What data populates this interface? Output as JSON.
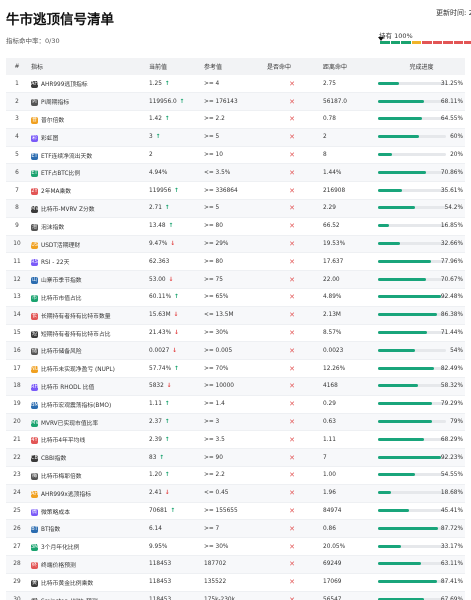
{
  "header": {
    "title": "牛市逃顶信号清单",
    "update_label": "更新时间: 2023",
    "hits_label": "指标命中率：0/30",
    "hold_label": "持有 100%",
    "segments": [
      "#1aa36f",
      "#1aa36f",
      "#1aa36f",
      "#f0b429",
      "#e25555",
      "#e25555",
      "#e25555",
      "#e25555",
      "#e25555",
      "#e25555"
    ]
  },
  "columns": [
    "#",
    "指标",
    "当前值",
    "参考值",
    "是否命中",
    "距离命中",
    "完成进度"
  ],
  "rows": [
    {
      "idx": "1",
      "icon": "AH",
      "name": "AHR999逃顶指标",
      "current": "1.25",
      "trend": "up",
      "ref": ">= 4",
      "hit": "✕",
      "distance": "2.75",
      "progress": 31.25,
      "pct": "31.25%"
    },
    {
      "idx": "2",
      "icon": "PI",
      "name": "Pi周期指标",
      "current": "119956.0",
      "trend": "up",
      "ref": ">= 176143",
      "hit": "✕",
      "distance": "56187.0",
      "progress": 68.11,
      "pct": "68.11%"
    },
    {
      "idx": "3",
      "icon": "普",
      "name": "普尔倍数",
      "current": "1.42",
      "trend": "up",
      "ref": ">= 2.2",
      "hit": "✕",
      "distance": "0.78",
      "progress": 64.55,
      "pct": "64.55%"
    },
    {
      "idx": "4",
      "icon": "彩",
      "name": "彩虹图",
      "current": "3",
      "trend": "up",
      "ref": ">= 5",
      "hit": "✕",
      "distance": "2",
      "progress": 60,
      "pct": "60%"
    },
    {
      "idx": "5",
      "icon": "ET",
      "name": "ETF连续净流出天数",
      "current": "2",
      "trend": "",
      "ref": ">= 10",
      "hit": "✕",
      "distance": "8",
      "progress": 20,
      "pct": "20%"
    },
    {
      "idx": "6",
      "icon": "ET",
      "name": "ETF占BTC比例",
      "current": "4.94%",
      "trend": "",
      "ref": "<= 3.5%",
      "hit": "✕",
      "distance": "1.44%",
      "progress": 70.86,
      "pct": "70.86%"
    },
    {
      "idx": "7",
      "icon": "2Y",
      "name": "2年MA乘数",
      "current": "119956",
      "trend": "up",
      "ref": ">= 336864",
      "hit": "✕",
      "distance": "216908",
      "progress": 35.61,
      "pct": "35.61%"
    },
    {
      "idx": "8",
      "icon": "MV",
      "name": "比特币-MVRV Z分数",
      "current": "2.71",
      "trend": "up",
      "ref": ">= 5",
      "hit": "✕",
      "distance": "2.29",
      "progress": 54.2,
      "pct": "54.2%"
    },
    {
      "idx": "9",
      "icon": "泡",
      "name": "泡沫指数",
      "current": "13.48",
      "trend": "up",
      "ref": ">= 80",
      "hit": "✕",
      "distance": "66.52",
      "progress": 16.85,
      "pct": "16.85%"
    },
    {
      "idx": "10",
      "icon": "US",
      "name": "USDT活期理财",
      "current": "9.47%",
      "trend": "down",
      "ref": ">= 29%",
      "hit": "✕",
      "distance": "19.53%",
      "progress": 32.66,
      "pct": "32.66%"
    },
    {
      "idx": "11",
      "icon": "RS",
      "name": "RSI - 22天",
      "current": "62.363",
      "trend": "",
      "ref": ">= 80",
      "hit": "✕",
      "distance": "17.637",
      "progress": 77.96,
      "pct": "77.96%"
    },
    {
      "idx": "12",
      "icon": "山",
      "name": "山寨币季节指数",
      "current": "53.00",
      "trend": "down",
      "ref": ">= 75",
      "hit": "✕",
      "distance": "22.00",
      "progress": 70.67,
      "pct": "70.67%"
    },
    {
      "idx": "13",
      "icon": "市",
      "name": "比特币市值占比",
      "current": "60.11%",
      "trend": "up",
      "ref": ">= 65%",
      "hit": "✕",
      "distance": "4.89%",
      "progress": 92.48,
      "pct": "92.48%"
    },
    {
      "idx": "14",
      "icon": "长",
      "name": "长期持有者持有比特币数量",
      "current": "15.63M",
      "trend": "down",
      "ref": "<= 13.5M",
      "hit": "✕",
      "distance": "2.13M",
      "progress": 86.38,
      "pct": "86.38%"
    },
    {
      "idx": "15",
      "icon": "短",
      "name": "短期持有者持有比特币占比",
      "current": "21.43%",
      "trend": "down",
      "ref": ">= 30%",
      "hit": "✕",
      "distance": "8.57%",
      "progress": 71.44,
      "pct": "71.44%"
    },
    {
      "idx": "16",
      "icon": "储",
      "name": "比特币储备风险",
      "current": "0.0027",
      "trend": "down",
      "ref": ">= 0.005",
      "hit": "✕",
      "distance": "0.0023",
      "progress": 54,
      "pct": "54%"
    },
    {
      "idx": "17",
      "icon": "NU",
      "name": "比特币未实现净盈亏 (NUPL)",
      "current": "57.74%",
      "trend": "up",
      "ref": ">= 70%",
      "hit": "✕",
      "distance": "12.26%",
      "progress": 82.49,
      "pct": "82.49%"
    },
    {
      "idx": "18",
      "icon": "RH",
      "name": "比特币 RHODL 比值",
      "current": "5832",
      "trend": "down",
      "ref": ">= 10000",
      "hit": "✕",
      "distance": "4168",
      "progress": 58.32,
      "pct": "58.32%"
    },
    {
      "idx": "19",
      "icon": "BM",
      "name": "比特币宏观震荡指标(BMO)",
      "current": "1.11",
      "trend": "up",
      "ref": ">= 1.4",
      "hit": "✕",
      "distance": "0.29",
      "progress": 79.29,
      "pct": "79.29%"
    },
    {
      "idx": "20",
      "icon": "MV",
      "name": "MVRV已实现市值比率",
      "current": "2.37",
      "trend": "up",
      "ref": ">= 3",
      "hit": "✕",
      "distance": "0.63",
      "progress": 79,
      "pct": "79%"
    },
    {
      "idx": "21",
      "icon": "4Y",
      "name": "比特币4年平均线",
      "current": "2.39",
      "trend": "up",
      "ref": ">= 3.5",
      "hit": "✕",
      "distance": "1.11",
      "progress": 68.29,
      "pct": "68.29%"
    },
    {
      "idx": "22",
      "icon": "CB",
      "name": "CBBI指数",
      "current": "83",
      "trend": "up",
      "ref": ">= 90",
      "hit": "✕",
      "distance": "7",
      "progress": 92.23,
      "pct": "92.23%"
    },
    {
      "idx": "23",
      "icon": "梅",
      "name": "比特币梅耶倍数",
      "current": "1.20",
      "trend": "up",
      "ref": ">= 2.2",
      "hit": "✕",
      "distance": "1.00",
      "progress": 54.55,
      "pct": "54.55%"
    },
    {
      "idx": "24",
      "icon": "AH",
      "name": "AHR999x逃顶指标",
      "current": "2.41",
      "trend": "down",
      "ref": "<= 0.45",
      "hit": "✕",
      "distance": "1.96",
      "progress": 18.68,
      "pct": "18.68%"
    },
    {
      "idx": "25",
      "icon": "微",
      "name": "微策略成本",
      "current": "70681",
      "trend": "up",
      "ref": ">= 155655",
      "hit": "✕",
      "distance": "84974",
      "progress": 45.41,
      "pct": "45.41%"
    },
    {
      "idx": "26",
      "icon": "BT",
      "name": "BT指数",
      "current": "6.14",
      "trend": "",
      "ref": ">= 7",
      "hit": "✕",
      "distance": "0.86",
      "progress": 87.72,
      "pct": "87.72%"
    },
    {
      "idx": "27",
      "icon": "3M",
      "name": "3个月年化比例",
      "current": "9.95%",
      "trend": "",
      "ref": ">= 30%",
      "hit": "✕",
      "distance": "20.05%",
      "progress": 33.17,
      "pct": "33.17%"
    },
    {
      "idx": "28",
      "icon": "终",
      "name": "终端价格预测",
      "current": "118453",
      "trend": "",
      "ref": "187702",
      "hit": "✕",
      "distance": "69249",
      "progress": 63.11,
      "pct": "63.11%"
    },
    {
      "idx": "29",
      "icon": "黄",
      "name": "比特币黄金比例乘数",
      "current": "118453",
      "trend": "",
      "ref": "135522",
      "hit": "✕",
      "distance": "17069",
      "progress": 87.41,
      "pct": "87.41%"
    },
    {
      "idx": "30",
      "icon": "SM",
      "name": "Sminston_With 预测",
      "current": "118453",
      "trend": "",
      "ref": "175k-230k",
      "hit": "✕",
      "distance": "56547",
      "progress": 67.69,
      "pct": "67.69%"
    }
  ]
}
